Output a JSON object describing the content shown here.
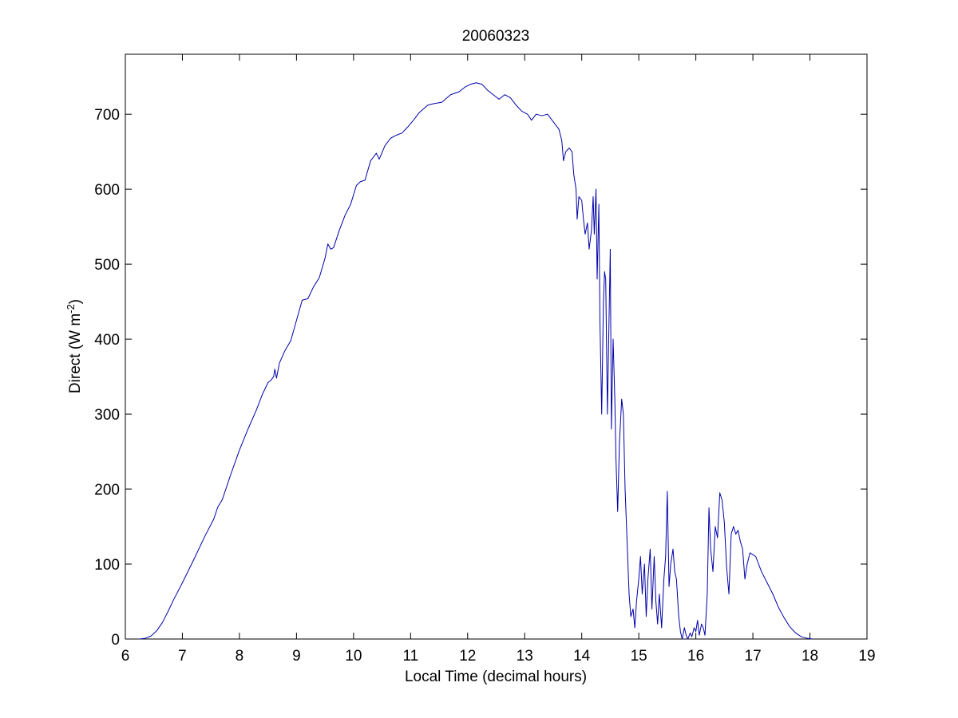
{
  "chart_data": {
    "type": "line",
    "title": "20060323",
    "xlabel": "Local Time (decimal hours)",
    "ylabel_prefix": "Direct (W m",
    "ylabel_exponent": "-2",
    "ylabel_suffix": ")",
    "xlim": [
      6,
      19
    ],
    "ylim": [
      0,
      780
    ],
    "x_ticks": [
      6,
      7,
      8,
      9,
      10,
      11,
      12,
      13,
      14,
      15,
      16,
      17,
      18,
      19
    ],
    "y_ticks": [
      0,
      100,
      200,
      300,
      400,
      500,
      600,
      700
    ],
    "grid": false,
    "legend": "none",
    "series": [
      {
        "color": "#0000aa",
        "points": [
          [
            6.25,
            0
          ],
          [
            6.35,
            1
          ],
          [
            6.45,
            4
          ],
          [
            6.55,
            11
          ],
          [
            6.65,
            22
          ],
          [
            6.75,
            37
          ],
          [
            6.85,
            53
          ],
          [
            7.0,
            75
          ],
          [
            7.2,
            106
          ],
          [
            7.4,
            138
          ],
          [
            7.55,
            160
          ],
          [
            7.62,
            176
          ],
          [
            7.7,
            186
          ],
          [
            7.85,
            220
          ],
          [
            8.0,
            252
          ],
          [
            8.15,
            280
          ],
          [
            8.3,
            306
          ],
          [
            8.4,
            326
          ],
          [
            8.5,
            342
          ],
          [
            8.55,
            345
          ],
          [
            8.6,
            350
          ],
          [
            8.62,
            360
          ],
          [
            8.65,
            348
          ],
          [
            8.7,
            368
          ],
          [
            8.8,
            385
          ],
          [
            8.9,
            398
          ],
          [
            9.0,
            425
          ],
          [
            9.1,
            452
          ],
          [
            9.2,
            454
          ],
          [
            9.3,
            470
          ],
          [
            9.4,
            482
          ],
          [
            9.5,
            508
          ],
          [
            9.55,
            527
          ],
          [
            9.6,
            520
          ],
          [
            9.65,
            522
          ],
          [
            9.75,
            545
          ],
          [
            9.85,
            565
          ],
          [
            9.95,
            580
          ],
          [
            10.05,
            605
          ],
          [
            10.12,
            610
          ],
          [
            10.2,
            612
          ],
          [
            10.3,
            638
          ],
          [
            10.4,
            648
          ],
          [
            10.45,
            640
          ],
          [
            10.55,
            658
          ],
          [
            10.65,
            668
          ],
          [
            10.75,
            672
          ],
          [
            10.85,
            675
          ],
          [
            10.95,
            683
          ],
          [
            11.05,
            692
          ],
          [
            11.15,
            702
          ],
          [
            11.3,
            712
          ],
          [
            11.4,
            714
          ],
          [
            11.55,
            716
          ],
          [
            11.7,
            726
          ],
          [
            11.85,
            730
          ],
          [
            11.95,
            736
          ],
          [
            12.05,
            740
          ],
          [
            12.15,
            742
          ],
          [
            12.25,
            740
          ],
          [
            12.35,
            732
          ],
          [
            12.45,
            726
          ],
          [
            12.55,
            720
          ],
          [
            12.65,
            726
          ],
          [
            12.75,
            722
          ],
          [
            12.85,
            712
          ],
          [
            12.95,
            704
          ],
          [
            13.05,
            700
          ],
          [
            13.12,
            692
          ],
          [
            13.2,
            700
          ],
          [
            13.3,
            698
          ],
          [
            13.4,
            700
          ],
          [
            13.5,
            690
          ],
          [
            13.6,
            680
          ],
          [
            13.65,
            665
          ],
          [
            13.68,
            638
          ],
          [
            13.72,
            650
          ],
          [
            13.78,
            655
          ],
          [
            13.83,
            650
          ],
          [
            13.86,
            620
          ],
          [
            13.9,
            600
          ],
          [
            13.92,
            560
          ],
          [
            13.95,
            590
          ],
          [
            14.0,
            585
          ],
          [
            14.03,
            560
          ],
          [
            14.06,
            540
          ],
          [
            14.1,
            555
          ],
          [
            14.13,
            520
          ],
          [
            14.17,
            545
          ],
          [
            14.2,
            590
          ],
          [
            14.22,
            540
          ],
          [
            14.25,
            600
          ],
          [
            14.27,
            480
          ],
          [
            14.3,
            580
          ],
          [
            14.32,
            420
          ],
          [
            14.35,
            300
          ],
          [
            14.38,
            450
          ],
          [
            14.4,
            490
          ],
          [
            14.42,
            480
          ],
          [
            14.45,
            300
          ],
          [
            14.5,
            520
          ],
          [
            14.52,
            280
          ],
          [
            14.55,
            400
          ],
          [
            14.58,
            320
          ],
          [
            14.6,
            240
          ],
          [
            14.63,
            170
          ],
          [
            14.66,
            260
          ],
          [
            14.7,
            320
          ],
          [
            14.73,
            300
          ],
          [
            14.76,
            200
          ],
          [
            14.8,
            120
          ],
          [
            14.83,
            60
          ],
          [
            14.86,
            30
          ],
          [
            14.9,
            40
          ],
          [
            14.93,
            15
          ],
          [
            14.96,
            50
          ],
          [
            15.0,
            80
          ],
          [
            15.03,
            110
          ],
          [
            15.06,
            60
          ],
          [
            15.1,
            100
          ],
          [
            15.13,
            30
          ],
          [
            15.16,
            80
          ],
          [
            15.2,
            120
          ],
          [
            15.23,
            40
          ],
          [
            15.27,
            110
          ],
          [
            15.3,
            50
          ],
          [
            15.33,
            20
          ],
          [
            15.36,
            60
          ],
          [
            15.4,
            15
          ],
          [
            15.44,
            80
          ],
          [
            15.47,
            110
          ],
          [
            15.5,
            197
          ],
          [
            15.53,
            70
          ],
          [
            15.56,
            100
          ],
          [
            15.6,
            120
          ],
          [
            15.63,
            90
          ],
          [
            15.66,
            80
          ],
          [
            15.7,
            30
          ],
          [
            15.73,
            10
          ],
          [
            15.76,
            0
          ],
          [
            15.8,
            15
          ],
          [
            15.83,
            5
          ],
          [
            15.86,
            0
          ],
          [
            15.9,
            8
          ],
          [
            15.93,
            3
          ],
          [
            15.97,
            15
          ],
          [
            16.0,
            10
          ],
          [
            16.03,
            25
          ],
          [
            16.06,
            5
          ],
          [
            16.1,
            20
          ],
          [
            16.13,
            15
          ],
          [
            16.16,
            5
          ],
          [
            16.2,
            60
          ],
          [
            16.23,
            175
          ],
          [
            16.26,
            120
          ],
          [
            16.3,
            90
          ],
          [
            16.34,
            150
          ],
          [
            16.38,
            135
          ],
          [
            16.42,
            195
          ],
          [
            16.46,
            185
          ],
          [
            16.5,
            155
          ],
          [
            16.54,
            95
          ],
          [
            16.58,
            60
          ],
          [
            16.62,
            140
          ],
          [
            16.66,
            150
          ],
          [
            16.7,
            140
          ],
          [
            16.74,
            145
          ],
          [
            16.78,
            130
          ],
          [
            16.82,
            120
          ],
          [
            16.86,
            80
          ],
          [
            16.9,
            100
          ],
          [
            16.95,
            115
          ],
          [
            17.05,
            110
          ],
          [
            17.15,
            90
          ],
          [
            17.25,
            75
          ],
          [
            17.35,
            60
          ],
          [
            17.45,
            42
          ],
          [
            17.55,
            28
          ],
          [
            17.65,
            16
          ],
          [
            17.75,
            8
          ],
          [
            17.85,
            3
          ],
          [
            17.95,
            1
          ],
          [
            18.05,
            0
          ]
        ]
      }
    ]
  }
}
